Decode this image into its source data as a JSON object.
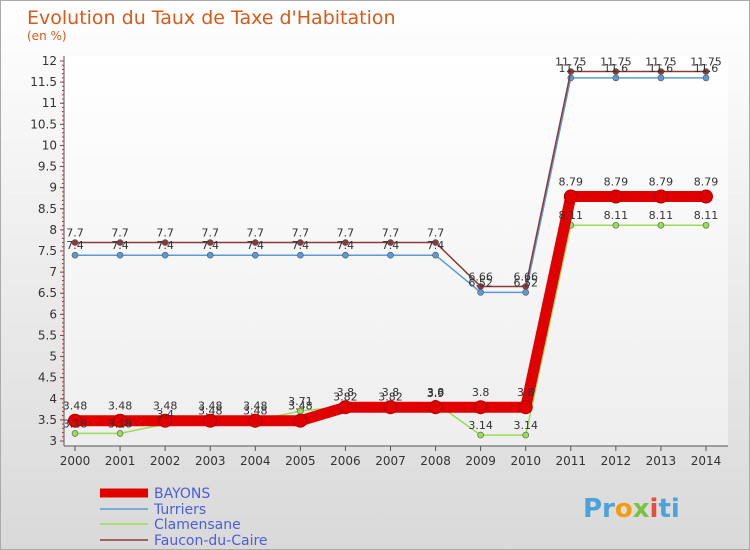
{
  "chart_data": {
    "type": "line",
    "title": "Evolution du Taux de Taxe d'Habitation",
    "subtitle": "(en %)",
    "xlabel": "",
    "ylabel": "(en %)",
    "ylim": [
      3,
      12
    ],
    "yticks": [
      "3",
      "3.5",
      "4",
      "4.5",
      "5",
      "5.5",
      "6",
      "6.5",
      "7",
      "7.5",
      "8",
      "8.5",
      "9",
      "9.5",
      "10",
      "10.5",
      "11",
      "11.5",
      "12"
    ],
    "categories": [
      "2000",
      "2001",
      "2002",
      "2003",
      "2004",
      "2005",
      "2006",
      "2007",
      "2008",
      "2009",
      "2010",
      "2011",
      "2012",
      "2013",
      "2014"
    ],
    "series": [
      {
        "name": "BAYONS",
        "color": "#e00000",
        "values": [
          3.48,
          3.48,
          3.48,
          3.48,
          3.48,
          3.48,
          3.8,
          3.8,
          3.8,
          3.8,
          3.8,
          8.79,
          8.79,
          8.79,
          8.79
        ],
        "labels": [
          "3.48",
          "3.48",
          "3.48",
          "3.48",
          "3.48",
          "3.48",
          "3.8",
          "3.8",
          "3.8",
          "3.8",
          "3.8",
          "8.79",
          "8.79",
          "8.79",
          "8.79"
        ]
      },
      {
        "name": "Turriers",
        "color": "#5b9bd5",
        "values": [
          7.4,
          7.4,
          7.4,
          7.4,
          7.4,
          7.4,
          7.4,
          7.4,
          7.4,
          6.52,
          6.52,
          11.6,
          11.6,
          11.6,
          11.6
        ],
        "labels": [
          "7.4",
          "7.4",
          "7.4",
          "7.4",
          "7.4",
          "7.4",
          "7.4",
          "7.4",
          "7.4",
          "6.52",
          "6.52",
          "11.6",
          "11.6",
          "11.6",
          "11.6"
        ]
      },
      {
        "name": "Clamensane",
        "color": "#99dd55",
        "values": [
          3.18,
          3.18,
          3.4,
          3.48,
          3.48,
          3.71,
          3.82,
          3.82,
          3.9,
          3.14,
          3.14,
          8.11,
          8.11,
          8.11,
          8.11
        ],
        "labels": [
          "3.18",
          "3.18",
          "3.4",
          "3.48",
          "3.48",
          "3.71",
          "3.82",
          "3.82",
          "3.9",
          "3.14",
          "3.14",
          "8.11",
          "8.11",
          "8.11",
          "8.11"
        ]
      },
      {
        "name": "Faucon-du-Caire",
        "color": "#8b3a3a",
        "values": [
          7.7,
          7.7,
          7.7,
          7.7,
          7.7,
          7.7,
          7.7,
          7.7,
          7.7,
          6.66,
          6.66,
          11.75,
          11.75,
          11.75,
          11.75
        ],
        "labels": [
          "7.7",
          "7.7",
          "7.7",
          "7.7",
          "7.7",
          "7.7",
          "7.7",
          "7.7",
          "7.7",
          "6.66",
          "6.66",
          "11.75",
          "11.75",
          "11.75",
          "11.75"
        ]
      }
    ],
    "legend": {
      "placement": "bottom-left"
    },
    "grid": false
  },
  "branding": {
    "logo_text": "Proxiti",
    "logo_colors": [
      "#4da3d9",
      "#f39c12",
      "#7cc242",
      "#e74c3c"
    ]
  }
}
